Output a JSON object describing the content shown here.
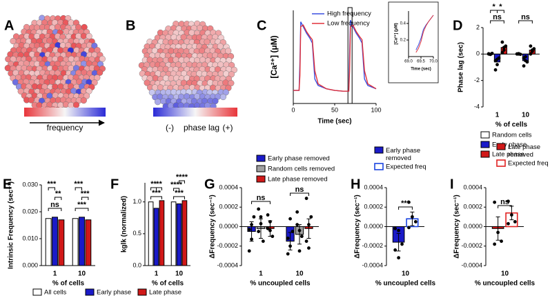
{
  "chart_data": [
    {
      "type": "cells",
      "label": "A",
      "colorbar": [
        "#e8353a",
        "#f6f6f6",
        "#2a2ad6"
      ],
      "colorbar_label": "frequency"
    },
    {
      "type": "cells",
      "label": "B",
      "colorbar": [
        "#2a2ad6",
        "#f6f6f6",
        "#e8353a"
      ],
      "colorbar_labels": [
        "(-)",
        "phase lag",
        "(+)"
      ]
    },
    {
      "type": "line",
      "label": "C",
      "xlabel": "Time (sec)",
      "ylabel": "[Ca²⁺]  (μM)",
      "xlim": [
        0,
        100
      ],
      "ylim": [
        0.05,
        0.62
      ],
      "xticks": [
        0,
        50,
        100
      ],
      "x": [
        0,
        7,
        8,
        9,
        12,
        16,
        20,
        23,
        26,
        30,
        40,
        50,
        60,
        67,
        68,
        69,
        72,
        76,
        80,
        83,
        86,
        90,
        100
      ],
      "series": [
        {
          "name": "High frequency",
          "color": "#3a4fe0",
          "values": [
            0.13,
            0.13,
            0.3,
            0.55,
            0.52,
            0.48,
            0.45,
            0.42,
            0.2,
            0.16,
            0.14,
            0.13,
            0.125,
            0.125,
            0.35,
            0.56,
            0.52,
            0.48,
            0.45,
            0.42,
            0.2,
            0.16,
            0.14
          ]
        },
        {
          "name": "Low frequency",
          "color": "#e0303a",
          "values": [
            0.13,
            0.13,
            0.22,
            0.52,
            0.53,
            0.49,
            0.46,
            0.44,
            0.25,
            0.17,
            0.14,
            0.13,
            0.125,
            0.125,
            0.25,
            0.52,
            0.53,
            0.49,
            0.46,
            0.44,
            0.25,
            0.17,
            0.14
          ]
        }
      ]
    },
    {
      "type": "line",
      "xlabel": "Time (sec)",
      "ylabel": "[Ca²⁺] (μM)",
      "xlim": [
        69,
        70
      ],
      "ylim": [
        0,
        0.55
      ],
      "xticks": [
        {
          "value": 69,
          "label": "69.0"
        },
        69.5,
        {
          "value": 70,
          "label": "70.0"
        }
      ],
      "yticks": [
        0.2,
        0.4
      ],
      "x": [
        69.3,
        69.4,
        69.5,
        69.6,
        69.7,
        69.8,
        69.9,
        70
      ],
      "series": [
        {
          "name": "High frequency",
          "color": "#3a4fe0",
          "values": [
            0.08,
            0.14,
            0.22,
            0.33,
            0.38,
            0.42,
            0.46,
            0.5
          ]
        },
        {
          "name": "Low frequency",
          "color": "#e0303a",
          "values": [
            0.05,
            0.1,
            0.18,
            0.3,
            0.37,
            0.42,
            0.46,
            0.5
          ]
        }
      ]
    },
    {
      "type": "bar",
      "label": "D",
      "ylabel": "Phase lag (sec)",
      "xlabel": "% of cells",
      "categories": [
        "1",
        "10"
      ],
      "ylim": [
        -4,
        2
      ],
      "yticks": [
        -4,
        -2,
        0,
        2
      ],
      "annotations": [
        "*",
        "*",
        "ns",
        "ns"
      ],
      "series": [
        {
          "name": "Random cells",
          "color": "#ffffff",
          "values": [
            0,
            0
          ],
          "points": [
            [
              0.02,
              -0.03,
              0.05,
              0,
              -0.02
            ],
            [
              0,
              0.03,
              -0.02,
              0.01,
              0
            ]
          ]
        },
        {
          "name": "Early phase",
          "color": "#1a1ac8",
          "values": [
            -0.6,
            -0.5
          ],
          "points": [
            [
              -1.2,
              -0.8,
              -0.3,
              -0.5,
              -0.4
            ],
            [
              -0.9,
              -0.2,
              -0.6,
              -0.3,
              -0.5
            ]
          ]
        },
        {
          "name": "Late phase",
          "color": "#d01818",
          "values": [
            0.5,
            0.3
          ],
          "points": [
            [
              0.1,
              0.3,
              0.6,
              0.9,
              0.5
            ],
            [
              0,
              0.2,
              0.4,
              0.6,
              0.3
            ]
          ]
        }
      ]
    },
    {
      "type": "bar",
      "label": "E",
      "ylabel": "Intrinsic Frequency (sec⁻¹)",
      "xlabel": "% of cells",
      "categories": [
        "1",
        "10"
      ],
      "ylim": [
        0,
        0.03
      ],
      "yticks": [
        {
          "value": 0,
          "label": "0.000"
        },
        {
          "value": 0.01,
          "label": "0.010"
        },
        {
          "value": 0.02,
          "label": "0.020"
        },
        {
          "value": 0.03,
          "label": "0.030"
        }
      ],
      "annotations": [
        "***",
        "**",
        "ns",
        "***",
        "***",
        "***"
      ],
      "series": [
        {
          "name": "All cells",
          "color": "#ffffff",
          "values": [
            0.0175,
            0.0175
          ]
        },
        {
          "name": "Early phase",
          "color": "#1a1ac8",
          "values": [
            0.018,
            0.018
          ]
        },
        {
          "name": "Late phase",
          "color": "#d01818",
          "values": [
            0.017,
            0.017
          ]
        }
      ]
    },
    {
      "type": "bar",
      "label": "F",
      "ylabel": "kglk (normalized)",
      "xlabel": "% of cells",
      "categories": [
        "1",
        "10"
      ],
      "ylim": [
        0,
        1.3
      ],
      "yticks": [
        {
          "value": 0,
          "label": "0.0"
        },
        {
          "value": 0.5,
          "label": "0.5"
        },
        {
          "value": 1,
          "label": "1.0"
        }
      ],
      "annotations": [
        "**",
        "**",
        "***",
        "****",
        "****",
        "***"
      ],
      "series": [
        {
          "name": "All cells",
          "color": "#ffffff",
          "values": [
            1,
            1
          ]
        },
        {
          "name": "Early phase",
          "color": "#1a1ac8",
          "values": [
            0.9,
            0.97
          ]
        },
        {
          "name": "Late phase",
          "color": "#d01818",
          "values": [
            1.02,
            1.02
          ]
        }
      ]
    },
    {
      "type": "bar",
      "label": "G",
      "ylabel": "ΔFrequency (sec⁻¹)",
      "xlabel": "% uncoupled cells",
      "categories": [
        "1",
        "10"
      ],
      "ylim": [
        -0.0004,
        0.0004
      ],
      "yticks": [
        {
          "value": -0.0004,
          "label": "-0.0004"
        },
        {
          "value": -0.0002,
          "label": "-0.0002"
        },
        {
          "value": 0,
          "label": "0.0000"
        },
        {
          "value": 0.0002,
          "label": "0.0002"
        },
        {
          "value": 0.0004,
          "label": "0.0004"
        }
      ],
      "annotations": [
        "ns",
        "ns"
      ],
      "series": [
        {
          "name": "Early phase removed",
          "color": "#1a1ac8",
          "values": [
            -5e-05,
            -0.00015
          ],
          "errors": [
            0.0001,
            9e-05
          ],
          "points": [
            [
              -0.00025,
              -0.00013,
              0.0001,
              -3e-05,
              2e-05
            ],
            [
              -0.00028,
              -0.0002,
              -5e-05,
              -0.00012,
              8e-05
            ]
          ]
        },
        {
          "name": "Random cells removed",
          "color": "#a0a0a0",
          "values": [
            -2e-05,
            -8e-05
          ],
          "errors": [
            0.0001,
            0.0001
          ],
          "points": [
            [
              0.00018,
              0.0001,
              -0.00015,
              -5e-05,
              3e-05
            ],
            [
              0.00015,
              -0.00025,
              -0.0001,
              2e-05,
              -4e-05
            ]
          ]
        },
        {
          "name": "Late phase removed",
          "color": "#d01818",
          "values": [
            -2e-05,
            -2e-05
          ],
          "errors": [
            8e-05,
            0.0001
          ],
          "points": [
            [
              0.00012,
              5e-05,
              -0.0001,
              -2e-05,
              -4e-05
            ],
            [
              0.00029,
              -0.00022,
              0.0001,
              -0.00015,
              2e-05
            ]
          ]
        }
      ]
    },
    {
      "type": "bar",
      "label": "H",
      "ylabel": "ΔFrequency (sec⁻¹)",
      "xlabel": "% uncoupled cells",
      "categories": [
        "10"
      ],
      "ylim": [
        -0.0004,
        0.0004
      ],
      "yticks": [
        {
          "value": -0.0004,
          "label": "-0.0004"
        },
        {
          "value": -0.0002,
          "label": "-0.0002"
        },
        {
          "value": 0,
          "label": "0.0000"
        },
        {
          "value": 0.0002,
          "label": "0.0002"
        },
        {
          "value": 0.0004,
          "label": "0.0004"
        }
      ],
      "annotations": [
        "***"
      ],
      "series": [
        {
          "name": "Early phase removed",
          "color": "#1a1ac8",
          "values": [
            -0.00016
          ],
          "errors": [
            9e-05
          ],
          "points": [
            [
              -2e-05,
              -4e-05,
              -0.00018,
              -0.00024,
              -0.00032
            ]
          ]
        },
        {
          "name": "Expected freq",
          "color": "#ffffff",
          "edgecolor": "#1a44e0",
          "values": [
            8e-05
          ],
          "errors": [
            7e-05
          ],
          "points": [
            [
              0.00025,
              0.0001,
              5e-05,
              -1e-05
            ]
          ]
        }
      ]
    },
    {
      "type": "bar",
      "label": "I",
      "ylabel": "ΔFrequency (sec⁻¹)",
      "xlabel": "% uncoupled cells",
      "categories": [
        "10"
      ],
      "ylim": [
        -0.0004,
        0.0004
      ],
      "yticks": [
        {
          "value": -0.0004,
          "label": "-0.0004"
        },
        {
          "value": -0.0002,
          "label": "-0.0002"
        },
        {
          "value": 0,
          "label": "0.0000"
        },
        {
          "value": 0.0002,
          "label": "0.0002"
        },
        {
          "value": 0.0004,
          "label": "0.0004"
        }
      ],
      "annotations": [
        "ns"
      ],
      "series": [
        {
          "name": "Late phase removed",
          "color": "#d01818",
          "values": [
            -2e-05
          ],
          "errors": [
            0.00012
          ],
          "points": [
            [
              0.00025,
              -6e-05,
              -0.00015,
              -0.00018
            ]
          ]
        },
        {
          "name": "Expected freq",
          "color": "#ffffff",
          "edgecolor": "#e02020",
          "values": [
            0.00014
          ],
          "errors": [
            7e-05
          ],
          "points": [
            [
              0.00026,
              0.00012,
              5e-05,
              3e-05
            ]
          ]
        }
      ]
    }
  ]
}
